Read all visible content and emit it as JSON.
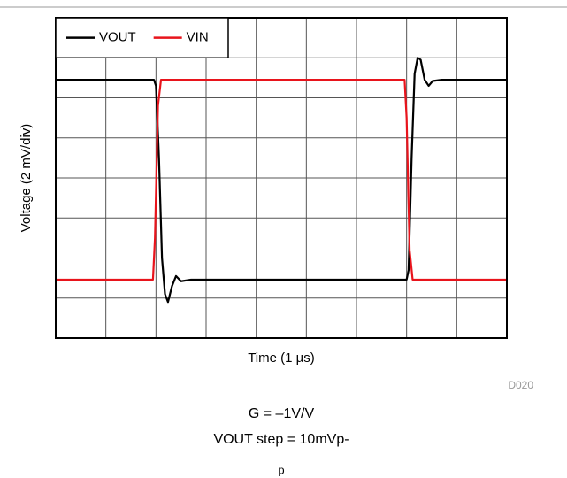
{
  "chart_data": {
    "type": "line",
    "xlabel": "Time (1 µs)",
    "ylabel": "Voltage (2 mV/div)",
    "xlim": [
      0,
      9
    ],
    "ylim": [
      0,
      8
    ],
    "grid": true,
    "legend": "upper left",
    "series": [
      {
        "name": "VOUT",
        "color": "#000000",
        "x": [
          0,
          1.96,
          2.0,
          2.06,
          2.12,
          2.18,
          2.24,
          2.32,
          2.4,
          2.5,
          2.7,
          7.0,
          7.04,
          7.1,
          7.16,
          7.22,
          7.28,
          7.36,
          7.44,
          7.52,
          7.7,
          9
        ],
        "values": [
          6.45,
          6.45,
          6.3,
          4.5,
          2.0,
          1.1,
          0.9,
          1.3,
          1.55,
          1.42,
          1.46,
          1.46,
          1.7,
          4.5,
          6.6,
          7.0,
          6.95,
          6.45,
          6.3,
          6.42,
          6.45,
          6.45
        ]
      },
      {
        "name": "VIN",
        "color": "#e8141c",
        "x": [
          0,
          1.94,
          1.98,
          2.04,
          2.1,
          6.96,
          7.0,
          7.06,
          7.12,
          9
        ],
        "values": [
          1.46,
          1.46,
          2.5,
          5.8,
          6.45,
          6.45,
          5.5,
          2.2,
          1.46,
          1.46
        ]
      }
    ],
    "annotations": [
      "D020",
      "G = –1V/V",
      "VOUT step = 10mVp-",
      "p"
    ]
  }
}
